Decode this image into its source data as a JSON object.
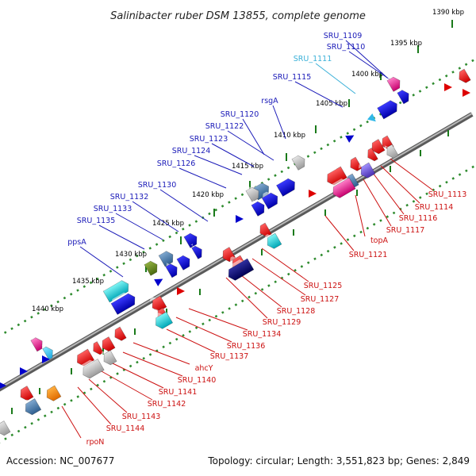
{
  "title": "Salinibacter ruber DSM 13855, complete genome",
  "footer": {
    "accession": "Accession: NC_007677",
    "stats": "Topology: circular; Length: 3,551,823 bp; Genes: 2,849"
  },
  "colors": {
    "backbone": "#808080",
    "tick": "#2e8b2e",
    "label_forward": "#1a1ab8",
    "label_reverse": "#cc1111",
    "label_highlight": "#3ab0d8"
  },
  "ticks": [
    "1390 kbp",
    "1395 kbp",
    "1400 kbp",
    "1405 kbp",
    "1410 kbp",
    "1415 kbp",
    "1420 kbp",
    "1425 kbp",
    "1430 kbp",
    "1435 kbp",
    "1440 kbp"
  ],
  "forward_labels": [
    "SRU_1109",
    "SRU_1110",
    "SRU_1111",
    "SRU_1115",
    "rsgA",
    "SRU_1120",
    "SRU_1122",
    "SRU_1123",
    "SRU_1124",
    "SRU_1126",
    "SRU_1130",
    "SRU_1132",
    "SRU_1133",
    "SRU_1135",
    "ppsA"
  ],
  "reverse_labels": [
    "SRU_1113",
    "SRU_1114",
    "SRU_1116",
    "SRU_1117",
    "topA",
    "SRU_1121",
    "SRU_1125",
    "SRU_1127",
    "SRU_1128",
    "SRU_1129",
    "SRU_1134",
    "SRU_1136",
    "SRU_1137",
    "ahcY",
    "SRU_1140",
    "SRU_1141",
    "SRU_1142",
    "SRU_1143",
    "SRU_1144",
    "rpoN"
  ]
}
